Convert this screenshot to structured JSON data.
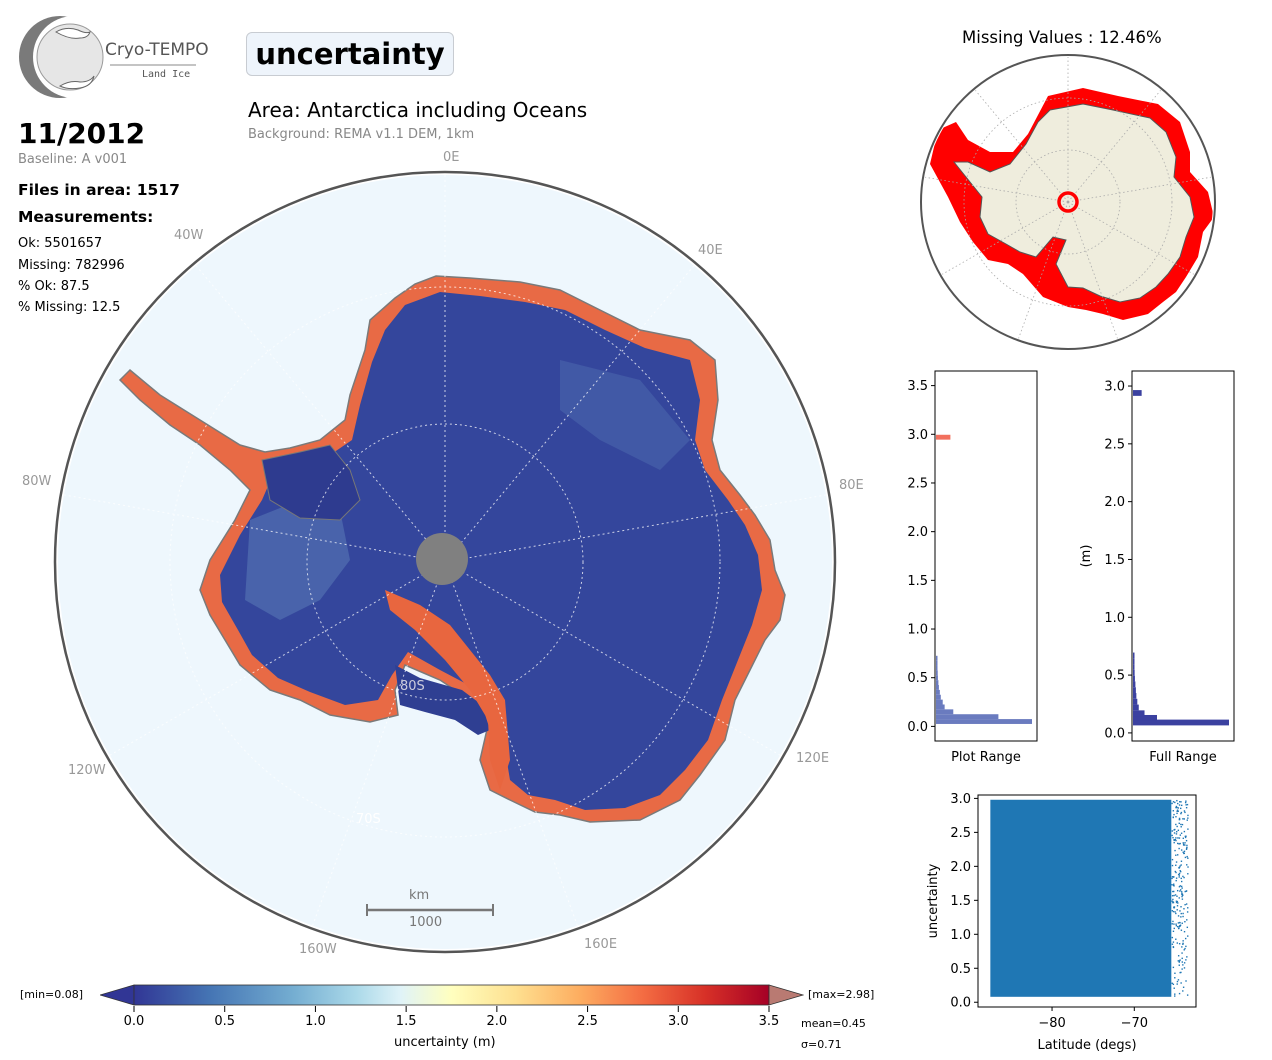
{
  "header": {
    "logo_title": "Cryo-TEMPO",
    "logo_subtitle": "Land Ice",
    "parameter": "uncertainty",
    "area": "Area: Antarctica including Oceans",
    "background": "Background: REMA v1.1 DEM, 1km"
  },
  "info": {
    "date": "11/2012",
    "baseline": "Baseline: A v001",
    "files": "Files in area: 1517",
    "measurements_heading": "Measurements:",
    "ok": "Ok: 5501657",
    "missing": "Missing: 782996",
    "pct_ok": "% Ok: 87.5",
    "pct_missing": "% Missing: 12.5"
  },
  "map": {
    "lon_labels": [
      "0E",
      "40E",
      "80E",
      "120E",
      "160E",
      "160W",
      "120W",
      "80W",
      "40W"
    ],
    "lat_labels": [
      "80S",
      "70S"
    ],
    "scalebar_unit": "km",
    "scalebar_value": "1000"
  },
  "colorbar": {
    "min_label": "[min=0.08]",
    "max_label": "[max=2.98]",
    "ticks": [
      "0.0",
      "0.5",
      "1.0",
      "1.5",
      "2.0",
      "2.5",
      "3.0",
      "3.5"
    ],
    "label": "uncertainty (m)",
    "mean": "mean=0.45",
    "sigma": "σ=0.71",
    "colors": [
      "#313695",
      "#4575b4",
      "#74add1",
      "#abd9e9",
      "#e0f3f8",
      "#ffffbf",
      "#fee090",
      "#fdae61",
      "#f46d43",
      "#d73027",
      "#a50026"
    ]
  },
  "chart_data": [
    {
      "id": "missing-map",
      "type": "map",
      "title": "Missing Values : 12.46%"
    },
    {
      "id": "hist-plot-range",
      "type": "bar",
      "orientation": "horizontal",
      "xlabel": "Plot Range",
      "ylim": [
        -0.15,
        3.65
      ],
      "yticks": [
        "0.0",
        "0.5",
        "1.0",
        "1.5",
        "2.0",
        "2.5",
        "3.0",
        "3.5"
      ],
      "bins": [
        {
          "y": 0.05,
          "w": 1.0
        },
        {
          "y": 0.1,
          "w": 0.65
        },
        {
          "y": 0.15,
          "w": 0.18
        },
        {
          "y": 0.2,
          "w": 0.09
        },
        {
          "y": 0.25,
          "w": 0.07
        },
        {
          "y": 0.3,
          "w": 0.05
        },
        {
          "y": 0.35,
          "w": 0.04
        },
        {
          "y": 0.4,
          "w": 0.03
        },
        {
          "y": 0.45,
          "w": 0.025
        },
        {
          "y": 0.5,
          "w": 0.02
        },
        {
          "y": 0.55,
          "w": 0.018
        },
        {
          "y": 0.6,
          "w": 0.015
        },
        {
          "y": 0.65,
          "w": 0.012
        },
        {
          "y": 0.7,
          "w": 0.008
        },
        {
          "y": 2.97,
          "w": 0.15
        }
      ]
    },
    {
      "id": "hist-full-range",
      "type": "bar",
      "orientation": "horizontal",
      "xlabel": "Full Range",
      "ylabel": "(m)",
      "ylim": [
        -0.07,
        3.13
      ],
      "yticks": [
        "0.0",
        "0.5",
        "1.0",
        "1.5",
        "2.0",
        "2.5",
        "3.0"
      ],
      "bins": [
        {
          "y": 0.09,
          "w": 1.0
        },
        {
          "y": 0.13,
          "w": 0.25
        },
        {
          "y": 0.17,
          "w": 0.12
        },
        {
          "y": 0.22,
          "w": 0.06
        },
        {
          "y": 0.27,
          "w": 0.045
        },
        {
          "y": 0.32,
          "w": 0.035
        },
        {
          "y": 0.37,
          "w": 0.03
        },
        {
          "y": 0.42,
          "w": 0.025
        },
        {
          "y": 0.47,
          "w": 0.02
        },
        {
          "y": 0.52,
          "w": 0.017
        },
        {
          "y": 0.57,
          "w": 0.014
        },
        {
          "y": 0.62,
          "w": 0.011
        },
        {
          "y": 0.67,
          "w": 0.006
        },
        {
          "y": 2.94,
          "w": 0.09
        }
      ]
    },
    {
      "id": "scatter-lat",
      "type": "scatter",
      "xlabel": "Latitude (degs)",
      "ylabel": "uncertainty",
      "xlim": [
        -89,
        -62.5
      ],
      "ylim": [
        -0.07,
        3.05
      ],
      "xticks": [
        "−80",
        "−70"
      ],
      "yticks": [
        "0.0",
        "0.5",
        "1.0",
        "1.5",
        "2.0",
        "2.5",
        "3.0"
      ],
      "dense_block": {
        "x": [
          -87.5,
          -65.5
        ],
        "y": [
          0.08,
          2.98
        ]
      },
      "sparse_x": [
        -65.5,
        -63.5
      ],
      "color": "#1f77b4"
    }
  ]
}
